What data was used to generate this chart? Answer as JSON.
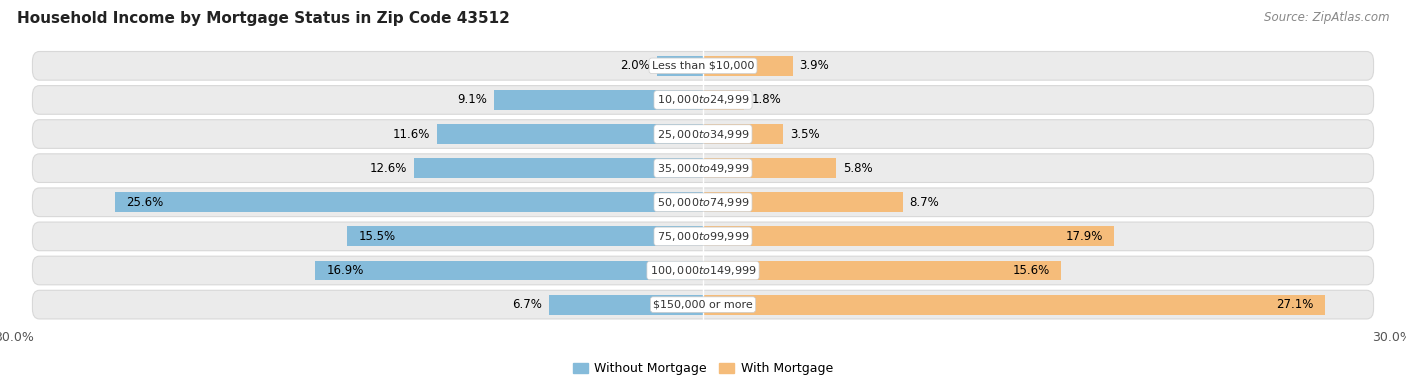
{
  "title": "Household Income by Mortgage Status in Zip Code 43512",
  "source": "Source: ZipAtlas.com",
  "categories": [
    "Less than $10,000",
    "$10,000 to $24,999",
    "$25,000 to $34,999",
    "$35,000 to $49,999",
    "$50,000 to $74,999",
    "$75,000 to $99,999",
    "$100,000 to $149,999",
    "$150,000 or more"
  ],
  "without_mortgage": [
    2.0,
    9.1,
    11.6,
    12.6,
    25.6,
    15.5,
    16.9,
    6.7
  ],
  "with_mortgage": [
    3.9,
    1.8,
    3.5,
    5.8,
    8.7,
    17.9,
    15.6,
    27.1
  ],
  "blue_color": "#85BBDA",
  "orange_color": "#F5BC7A",
  "bg_row_color": "#EBEBEB",
  "bg_row_edge": "#D8D8D8",
  "bar_height": 0.58,
  "xlim": 30.0,
  "title_fontsize": 11,
  "axis_label_fontsize": 9,
  "bar_label_fontsize": 8.5,
  "category_fontsize": 8,
  "legend_fontsize": 9,
  "source_fontsize": 8.5
}
